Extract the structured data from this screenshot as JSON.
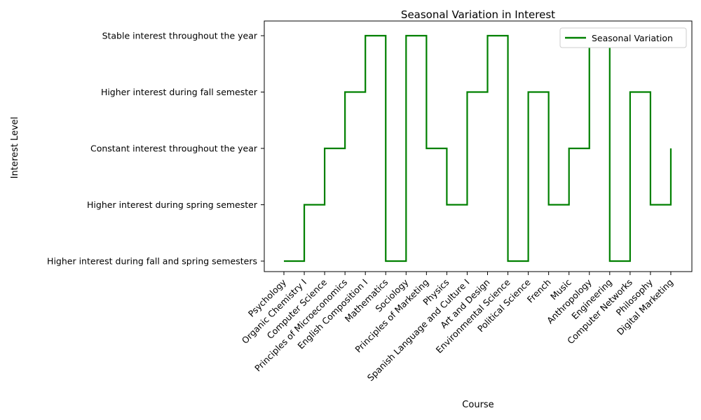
{
  "chart_data": {
    "type": "line",
    "drawstyle": "steps-post",
    "title": "Seasonal Variation in Interest",
    "xlabel": "Course",
    "ylabel": "Interest Level",
    "categories": [
      "Psychology",
      "Organic Chemistry I",
      "Computer Science",
      "Principles of Microeconomics",
      "English Composition I",
      "Mathematics",
      "Sociology",
      "Principles of Marketing",
      "Physics",
      "Spanish Language and Culture I",
      "Art and Design",
      "Environmental Science",
      "Political Science",
      "French",
      "Music",
      "Anthropology",
      "Engineering",
      "Computer Networks",
      "Philosophy",
      "Digital Marketing"
    ],
    "y_levels": [
      "Higher interest during fall and spring semesters",
      "Higher interest during spring semester",
      "Constant interest throughout the year",
      "Higher interest during fall semester",
      "Stable interest throughout the year"
    ],
    "series": [
      {
        "name": "Seasonal Variation",
        "color": "#008000",
        "values": [
          "Higher interest during fall and spring semesters",
          "Higher interest during spring semester",
          "Constant interest throughout the year",
          "Higher interest during fall semester",
          "Stable interest throughout the year",
          "Higher interest during fall and spring semesters",
          "Stable interest throughout the year",
          "Constant interest throughout the year",
          "Higher interest during spring semester",
          "Higher interest during fall semester",
          "Stable interest throughout the year",
          "Higher interest during fall and spring semesters",
          "Higher interest during fall semester",
          "Higher interest during spring semester",
          "Constant interest throughout the year",
          "Stable interest throughout the year",
          "Higher interest during fall and spring semesters",
          "Higher interest during fall semester",
          "Higher interest during spring semester",
          "Constant interest throughout the year"
        ]
      }
    ],
    "legend": {
      "position": "top-right"
    },
    "grid": false
  }
}
